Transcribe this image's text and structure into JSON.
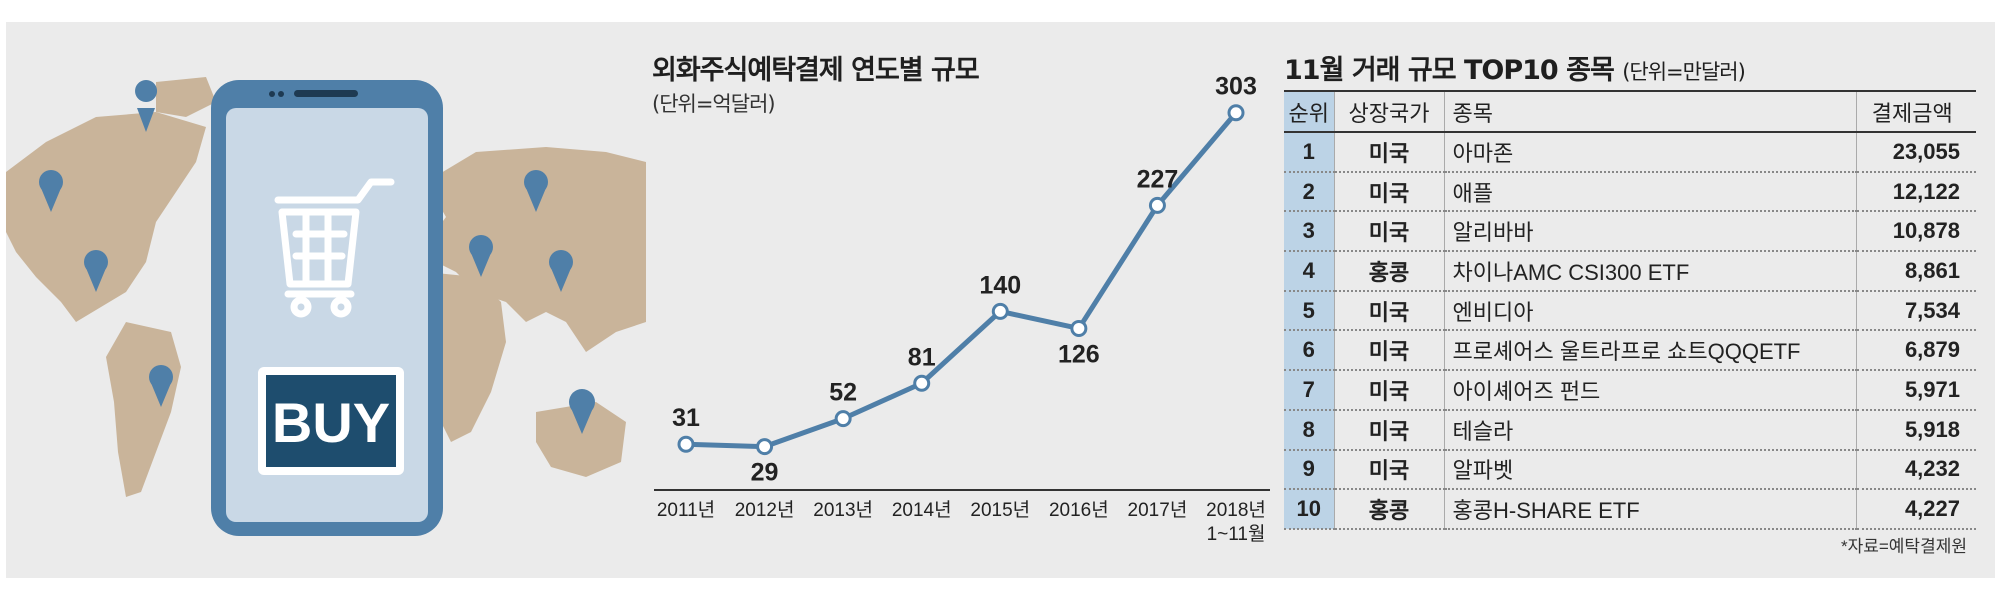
{
  "illustration": {
    "buy_label": "BUY",
    "icons": [
      "world-map",
      "smartphone",
      "shopping-cart-icon",
      "map-pin-icon"
    ]
  },
  "chart": {
    "title": "외화주식예탁결제 연도별 규모",
    "unit": "(단위=억달러)"
  },
  "chart_data": {
    "type": "line",
    "title": "외화주식예탁결제 연도별 규모",
    "unit": "(단위=억달러)",
    "categories": [
      "2011년",
      "2012년",
      "2013년",
      "2014년",
      "2015년",
      "2016년",
      "2017년",
      "2018년 1~11월"
    ],
    "values": [
      31,
      29,
      52,
      81,
      140,
      126,
      227,
      303
    ],
    "ylim": [
      0,
      320
    ],
    "grid": false,
    "line_color": "#4f7fa8"
  },
  "table": {
    "title": "11월 거래 규모 TOP10 종목",
    "unit": "(단위=만달러)",
    "headers": {
      "rank": "순위",
      "country": "상장국가",
      "name": "종목",
      "amount": "결제금액"
    },
    "rows": [
      {
        "rank": "1",
        "country": "미국",
        "name": "아마존",
        "amount": "23,055"
      },
      {
        "rank": "2",
        "country": "미국",
        "name": "애플",
        "amount": "12,122"
      },
      {
        "rank": "3",
        "country": "미국",
        "name": "알리바바",
        "amount": "10,878"
      },
      {
        "rank": "4",
        "country": "홍콩",
        "name": "차이나AMC CSI300 ETF",
        "amount": "8,861"
      },
      {
        "rank": "5",
        "country": "미국",
        "name": "엔비디아",
        "amount": "7,534"
      },
      {
        "rank": "6",
        "country": "미국",
        "name": "프로셰어스 울트라프로 쇼트QQQETF",
        "amount": "6,879"
      },
      {
        "rank": "7",
        "country": "미국",
        "name": "아이셰어즈 펀드",
        "amount": "5,971"
      },
      {
        "rank": "8",
        "country": "미국",
        "name": "테슬라",
        "amount": "5,918"
      },
      {
        "rank": "9",
        "country": "미국",
        "name": "알파벳",
        "amount": "4,232"
      },
      {
        "rank": "10",
        "country": "홍콩",
        "name": "홍콩H-SHARE ETF",
        "amount": "4,227"
      }
    ],
    "source": "*자료=예탁결제원",
    "accent": "#bcd3e6"
  }
}
